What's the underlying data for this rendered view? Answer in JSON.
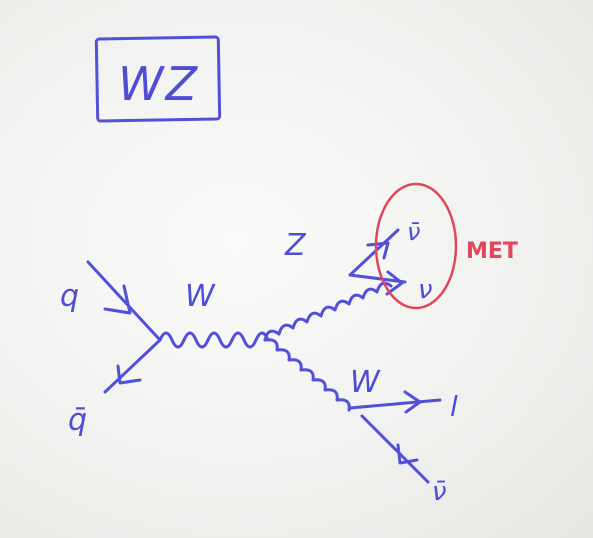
{
  "diagram": {
    "title": "WZ",
    "labels": {
      "quark": "q",
      "antiquark": "q̄",
      "w_propagator": "W",
      "z_boson": "Z",
      "w_boson": "W",
      "antineutrino_z": "ν̄",
      "neutrino_z": "ν",
      "lepton": "l",
      "antineutrino_w": "ν̄",
      "met": "MET"
    },
    "colors": {
      "ink": "#5250d8",
      "highlight": "#e0475a"
    }
  }
}
